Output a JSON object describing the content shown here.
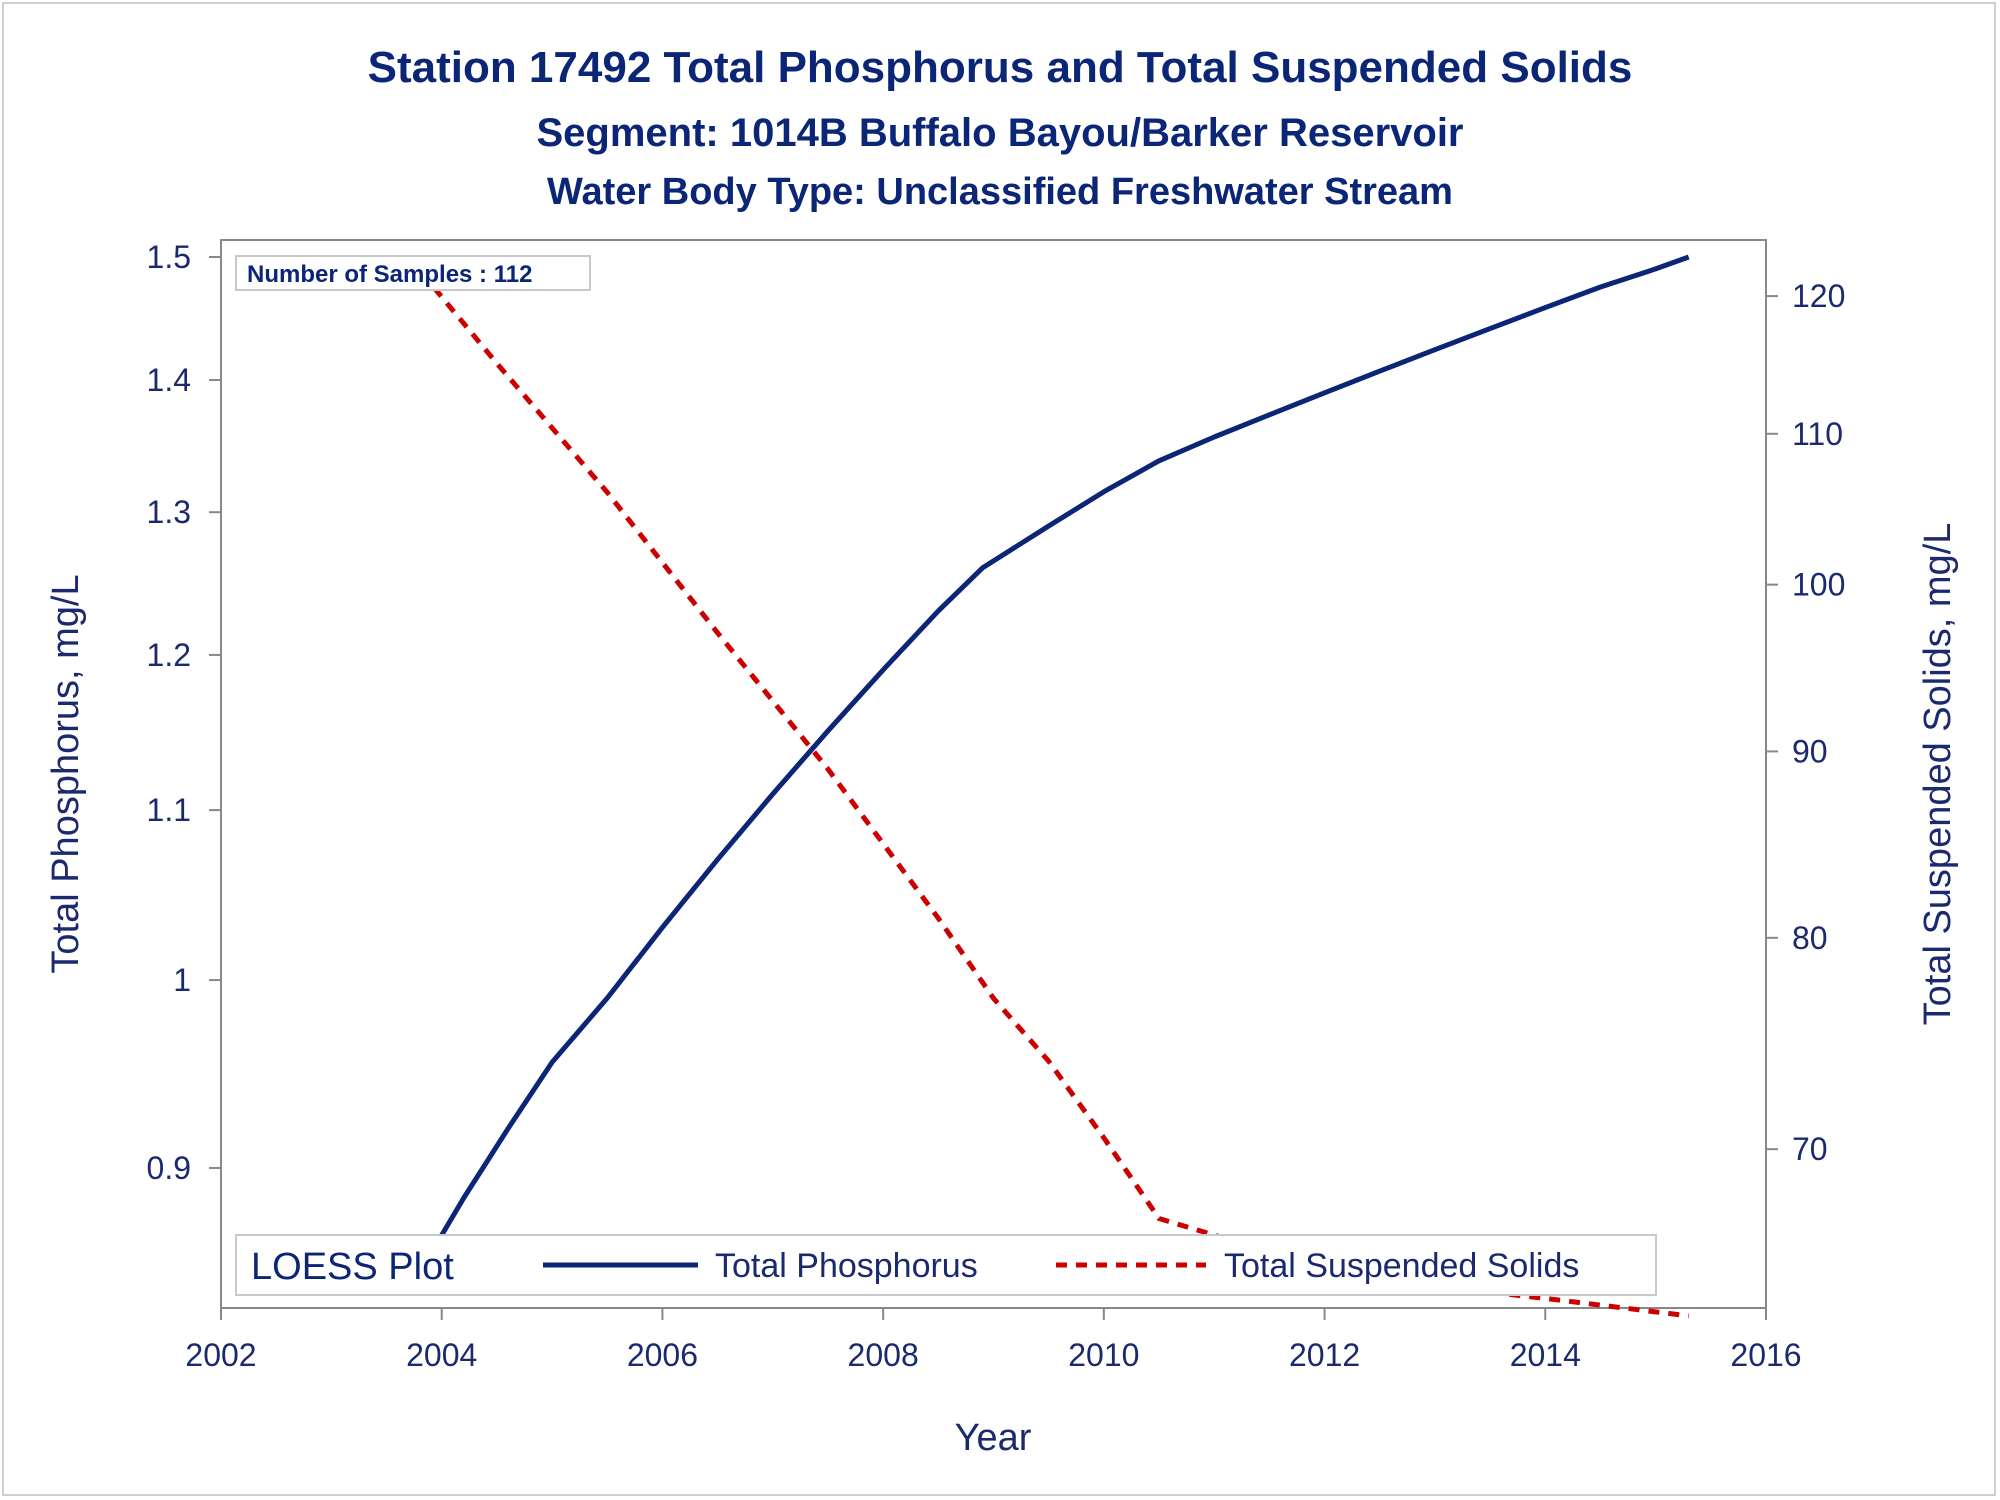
{
  "chart_data": {
    "type": "line",
    "title": "Station 17492  Total Phosphorus and Total Suspended Solids",
    "subtitle": "Segment: 1014B  Buffalo Bayou/Barker Reservoir",
    "subtitle2": "Water Body Type: Unclassified Freshwater Stream",
    "xlabel": "Year",
    "ylabel_left": "Total Phosphorus, mg/L",
    "ylabel_right": "Total Suspended Solids, mg/L",
    "xlim": [
      2002,
      2016
    ],
    "ylim_left": [
      0.84,
      1.5
    ],
    "ylim_right": [
      64,
      123
    ],
    "yscale": "log",
    "x_ticks": [
      "2002",
      "2004",
      "2006",
      "2008",
      "2010",
      "2012",
      "2014",
      "2016"
    ],
    "y_left_ticks": [
      "0.9",
      "1",
      "1.1",
      "1.2",
      "1.3",
      "1.4",
      "1.5"
    ],
    "y_right_ticks": [
      "70",
      "80",
      "90",
      "100",
      "110",
      "120"
    ],
    "grid": false,
    "annotation": "Number of Samples : 112",
    "legend_title": "LOESS Plot",
    "legend_position": "bottom-inside",
    "colors": {
      "text": "#1b2a6e",
      "phosphorus": "#0b2577",
      "tss": "#cc0000",
      "axis": "#888888"
    },
    "series": [
      {
        "name": "Total Phosphorus",
        "axis": "left",
        "style": "solid",
        "x": [
          2003.7,
          2004.2,
          2004.6,
          2005.0,
          2005.5,
          2006.0,
          2006.5,
          2007.0,
          2007.5,
          2008.0,
          2008.5,
          2008.9,
          2009.5,
          2010.0,
          2010.5,
          2011.0,
          2011.5,
          2012.0,
          2012.5,
          2013.0,
          2013.5,
          2014.0,
          2014.5,
          2015.0,
          2015.3
        ],
        "y": [
          0.84,
          0.885,
          0.92,
          0.955,
          0.99,
          1.03,
          1.07,
          1.11,
          1.15,
          1.19,
          1.23,
          1.26,
          1.29,
          1.315,
          1.338,
          1.356,
          1.373,
          1.39,
          1.407,
          1.424,
          1.441,
          1.458,
          1.475,
          1.49,
          1.5
        ]
      },
      {
        "name": "Total Suspended Solids",
        "axis": "right",
        "style": "dashed",
        "x": [
          2003.7,
          2004.5,
          2005.5,
          2006.5,
          2007.5,
          2008.5,
          2009.0,
          2009.5,
          2010.0,
          2010.5,
          2011.0,
          2012.0,
          2013.0,
          2014.0,
          2015.3
        ],
        "y": [
          123,
          115,
          106,
          97,
          89,
          81,
          77,
          74,
          70.5,
          67,
          66.3,
          65,
          64.2,
          63.7,
          63.0
        ]
      }
    ]
  }
}
